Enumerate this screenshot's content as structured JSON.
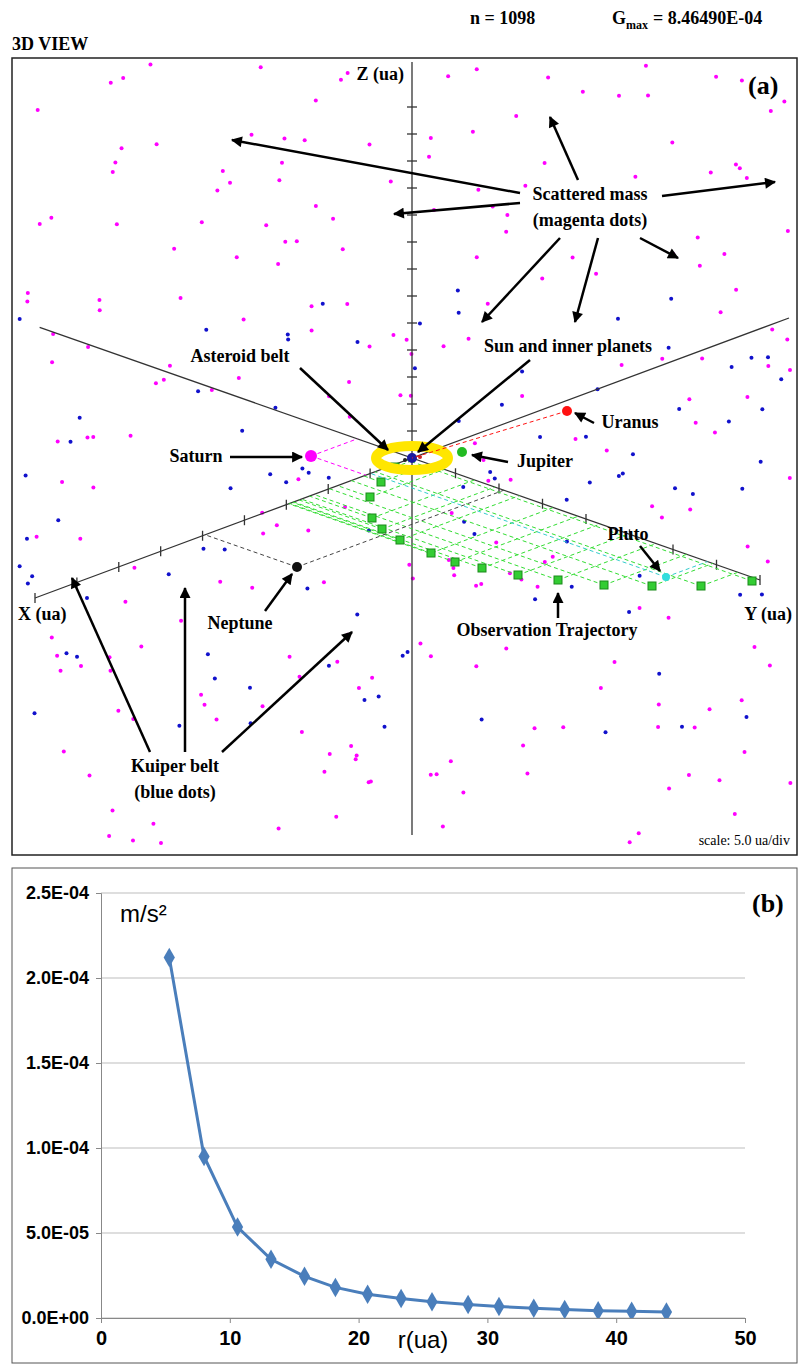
{
  "diagram": {
    "view_title": "3D VIEW",
    "n_label": "n = 1098",
    "gmax": {
      "symbol": "G",
      "subscript": "max",
      "value": "= 8.46490E-04"
    },
    "panel": "(a)",
    "axes": {
      "x": "X (ua)",
      "y": "Y (ua)",
      "z": "Z (ua)"
    },
    "scale_label": "scale: 5.0 ua/div",
    "annotations": [
      {
        "lines": [
          "Scattered mass",
          "(magenta dots)"
        ]
      },
      {
        "lines": [
          "Sun and inner planets"
        ]
      },
      {
        "lines": [
          "Asteroid belt"
        ]
      },
      {
        "lines": [
          "Saturn"
        ]
      },
      {
        "lines": [
          "Jupiter"
        ]
      },
      {
        "lines": [
          "Uranus"
        ]
      },
      {
        "lines": [
          "Pluto"
        ]
      },
      {
        "lines": [
          "Neptune"
        ]
      },
      {
        "lines": [
          "Observation Trajectory"
        ]
      },
      {
        "lines": [
          "Kuiper belt",
          "(blue dots)"
        ]
      }
    ]
  },
  "chart_data": {
    "type": "line",
    "panel": "(b)",
    "xlabel": "r(ua)",
    "ylabel": "m/s²",
    "x": [
      5.3,
      8.0,
      10.6,
      13.2,
      15.8,
      18.2,
      20.7,
      23.3,
      25.7,
      28.5,
      30.9,
      33.6,
      36.0,
      38.6,
      41.2,
      43.9
    ],
    "values": [
      0.000212,
      9.5e-05,
      5.35e-05,
      3.45e-05,
      2.45e-05,
      1.8e-05,
      1.4e-05,
      1.15e-05,
      9.5e-06,
      8e-06,
      6.8e-06,
      5.8e-06,
      5e-06,
      4.3e-06,
      3.9e-06,
      3.5e-06
    ],
    "color": "#4a7ebb",
    "marker": "diamond",
    "xlim": [
      0,
      50
    ],
    "xticks": [
      0,
      10,
      20,
      30,
      40,
      50
    ],
    "ylim": [
      0,
      0.00025
    ],
    "yticks": [
      {
        "value": 0,
        "label": "0.0E+00"
      },
      {
        "value": 5e-05,
        "label": "5.0E-05"
      },
      {
        "value": 0.0001,
        "label": "1.0E-04"
      },
      {
        "value": 0.00015,
        "label": "1.5E-04"
      },
      {
        "value": 0.0002,
        "label": "2.0E-04"
      },
      {
        "value": 0.00025,
        "label": "2.5E-04"
      }
    ],
    "grid": true
  }
}
